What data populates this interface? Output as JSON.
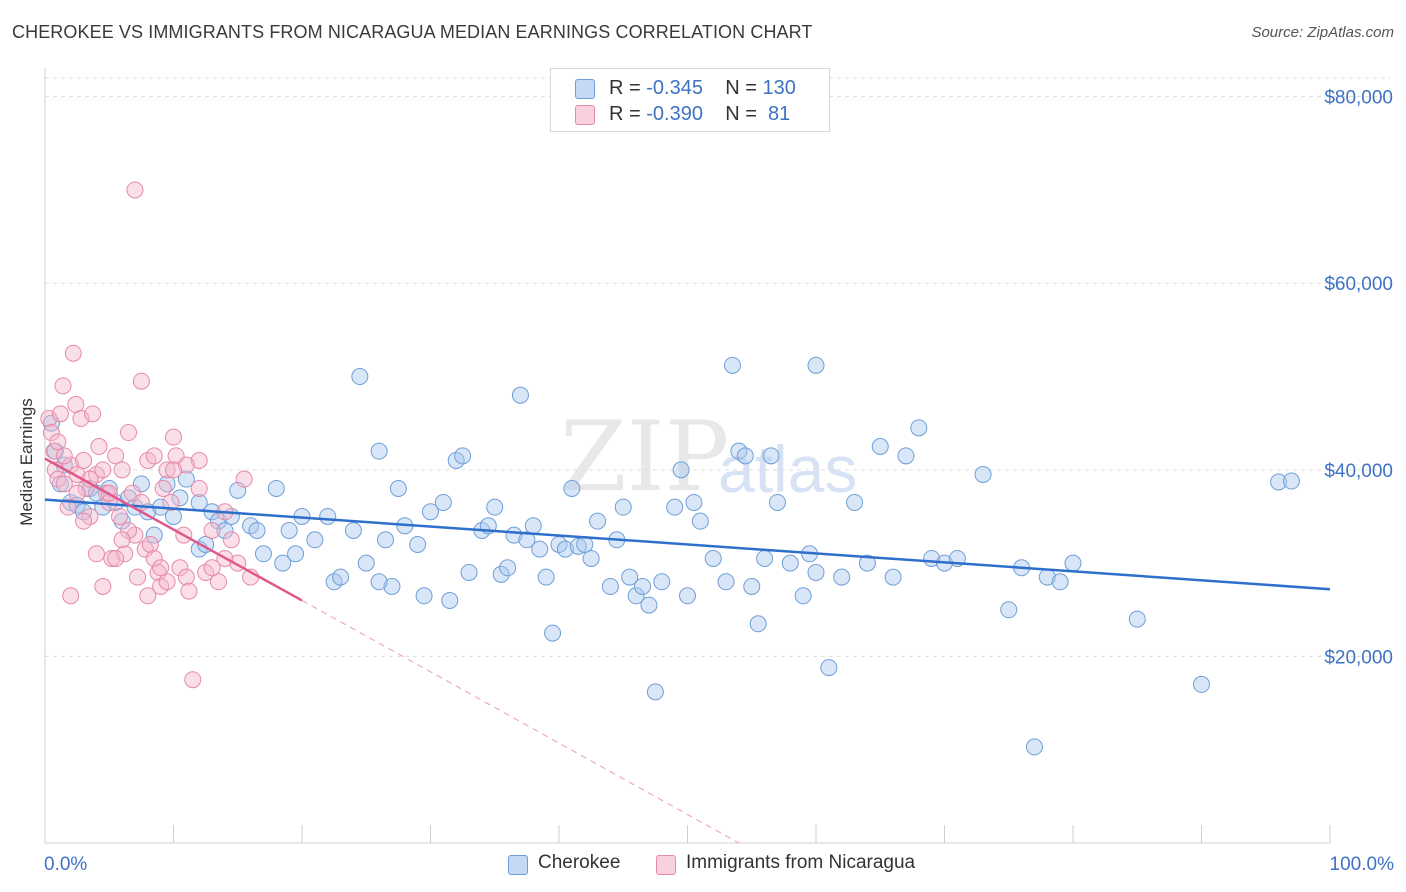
{
  "title": "CHEROKEE VS IMMIGRANTS FROM NICARAGUA MEDIAN EARNINGS CORRELATION CHART",
  "source": "Source: ZipAtlas.com",
  "watermark": "ZIPatlas",
  "colors": {
    "cherokee_fill": "#a9c7ee",
    "cherokee_stroke": "#6f9fd8",
    "cherokee_line": "#2f6fcc",
    "nicaragua_fill": "#f5b8cb",
    "nicaragua_stroke": "#e58aa8",
    "nicaragua_line": "#e0578a",
    "axis_label": "#3d72c4",
    "grid": "#dddddd"
  },
  "legend": [
    {
      "r_label": "R = ",
      "r_value": "-0.345",
      "n_label": "N = ",
      "n_value": "130"
    },
    {
      "r_label": "R = ",
      "r_value": "-0.390",
      "n_label": "N = ",
      "n_value": " 81"
    }
  ],
  "chart_data": {
    "type": "scatter",
    "title": "CHEROKEE VS IMMIGRANTS FROM NICARAGUA MEDIAN EARNINGS CORRELATION CHART",
    "ylabel": "Median Earnings",
    "xlabel": "",
    "x_tick_labels": [
      "0.0%",
      "100.0%"
    ],
    "y_tick_labels": [
      "$20,000",
      "$40,000",
      "$60,000",
      "$80,000"
    ],
    "y_ticks": [
      20000,
      40000,
      60000,
      80000
    ],
    "xlim": [
      0,
      100
    ],
    "ylim": [
      0,
      82000
    ],
    "grid": true,
    "legend_position": "top-center",
    "series": [
      {
        "name": "Cherokee",
        "trend": {
          "x": [
            0,
            100
          ],
          "y": [
            36800,
            27200
          ],
          "dashed_to": null
        },
        "points": [
          [
            0.5,
            45000
          ],
          [
            0.8,
            42000
          ],
          [
            1.2,
            38500
          ],
          [
            1.5,
            40500
          ],
          [
            2.0,
            36500
          ],
          [
            2.5,
            36200
          ],
          [
            3.0,
            35500
          ],
          [
            3.5,
            38000
          ],
          [
            4.0,
            37500
          ],
          [
            4.5,
            36000
          ],
          [
            5.0,
            38000
          ],
          [
            5.5,
            36500
          ],
          [
            6.0,
            34500
          ],
          [
            6.5,
            37000
          ],
          [
            7.0,
            36000
          ],
          [
            7.5,
            38500
          ],
          [
            8.0,
            35500
          ],
          [
            8.5,
            33000
          ],
          [
            9.0,
            36000
          ],
          [
            9.5,
            38500
          ],
          [
            10.0,
            35000
          ],
          [
            10.5,
            37000
          ],
          [
            11.0,
            39000
          ],
          [
            12.0,
            31500
          ],
          [
            12.5,
            32000
          ],
          [
            13.0,
            35500
          ],
          [
            13.5,
            34500
          ],
          [
            14.0,
            33500
          ],
          [
            14.5,
            35000
          ],
          [
            15.0,
            37800
          ],
          [
            16.0,
            34000
          ],
          [
            16.5,
            33500
          ],
          [
            17.0,
            31000
          ],
          [
            18.0,
            38000
          ],
          [
            18.5,
            30000
          ],
          [
            19.0,
            33500
          ],
          [
            19.5,
            31000
          ],
          [
            20.0,
            35000
          ],
          [
            21.0,
            32500
          ],
          [
            22.0,
            35000
          ],
          [
            22.5,
            28000
          ],
          [
            23.0,
            28500
          ],
          [
            24.0,
            33500
          ],
          [
            24.5,
            50000
          ],
          [
            25.0,
            30000
          ],
          [
            26.0,
            42000
          ],
          [
            26.5,
            32500
          ],
          [
            27.0,
            27500
          ],
          [
            27.5,
            38000
          ],
          [
            28.0,
            34000
          ],
          [
            29.0,
            32000
          ],
          [
            29.5,
            26500
          ],
          [
            30.0,
            35500
          ],
          [
            31.0,
            36500
          ],
          [
            31.5,
            26000
          ],
          [
            32.0,
            41000
          ],
          [
            32.5,
            41500
          ],
          [
            33.0,
            29000
          ],
          [
            34.0,
            33500
          ],
          [
            34.5,
            34000
          ],
          [
            35.0,
            36000
          ],
          [
            35.5,
            28800
          ],
          [
            36.0,
            29500
          ],
          [
            36.5,
            33000
          ],
          [
            37.0,
            48000
          ],
          [
            37.5,
            32500
          ],
          [
            38.0,
            34000
          ],
          [
            38.5,
            31500
          ],
          [
            39.0,
            28500
          ],
          [
            39.5,
            22500
          ],
          [
            40.0,
            32000
          ],
          [
            40.5,
            31500
          ],
          [
            41.0,
            38000
          ],
          [
            41.5,
            31800
          ],
          [
            42.0,
            32000
          ],
          [
            42.5,
            30500
          ],
          [
            43.0,
            34500
          ],
          [
            44.0,
            27500
          ],
          [
            44.5,
            32500
          ],
          [
            45.0,
            36000
          ],
          [
            45.5,
            28500
          ],
          [
            46.0,
            26500
          ],
          [
            46.5,
            27500
          ],
          [
            47.0,
            25500
          ],
          [
            47.5,
            16200
          ],
          [
            48.0,
            28000
          ],
          [
            49.0,
            36000
          ],
          [
            49.5,
            40000
          ],
          [
            50.0,
            26500
          ],
          [
            50.5,
            36500
          ],
          [
            51.0,
            34500
          ],
          [
            52.0,
            30500
          ],
          [
            53.0,
            28000
          ],
          [
            53.5,
            51200
          ],
          [
            54.0,
            42000
          ],
          [
            54.5,
            41500
          ],
          [
            55.0,
            27500
          ],
          [
            55.5,
            23500
          ],
          [
            56.0,
            30500
          ],
          [
            56.5,
            41500
          ],
          [
            57.0,
            36500
          ],
          [
            58.0,
            30000
          ],
          [
            59.0,
            26500
          ],
          [
            59.5,
            31000
          ],
          [
            60.0,
            29000
          ],
          [
            61.0,
            18800
          ],
          [
            62.0,
            28500
          ],
          [
            63.0,
            36500
          ],
          [
            64.0,
            30000
          ],
          [
            65.0,
            42500
          ],
          [
            66.0,
            28500
          ],
          [
            67.0,
            41500
          ],
          [
            68.0,
            44500
          ],
          [
            69.0,
            30500
          ],
          [
            70.0,
            30000
          ],
          [
            71.0,
            30500
          ],
          [
            73.0,
            39500
          ],
          [
            75.0,
            25000
          ],
          [
            76.0,
            29500
          ],
          [
            77.0,
            10300
          ],
          [
            78.0,
            28500
          ],
          [
            79.0,
            28000
          ],
          [
            80.0,
            30000
          ],
          [
            85.0,
            24000
          ],
          [
            90.0,
            17000
          ],
          [
            96.0,
            38700
          ],
          [
            97.0,
            38800
          ],
          [
            12.0,
            36500
          ],
          [
            26.0,
            28000
          ],
          [
            60.0,
            51200
          ]
        ]
      },
      {
        "name": "Immigrants from Nicaragua",
        "trend": {
          "x": [
            0,
            20
          ],
          "y": [
            41200,
            26000
          ],
          "dashed_to": {
            "x": 54,
            "y": 0
          }
        },
        "points": [
          [
            0.3,
            45500
          ],
          [
            0.5,
            44000
          ],
          [
            0.7,
            42000
          ],
          [
            0.8,
            40000
          ],
          [
            1.0,
            39000
          ],
          [
            1.2,
            46000
          ],
          [
            1.4,
            49000
          ],
          [
            1.5,
            38500
          ],
          [
            1.8,
            36000
          ],
          [
            2.0,
            40500
          ],
          [
            2.2,
            52500
          ],
          [
            2.4,
            47000
          ],
          [
            2.5,
            39500
          ],
          [
            2.8,
            45500
          ],
          [
            3.0,
            41000
          ],
          [
            3.2,
            38000
          ],
          [
            3.5,
            35000
          ],
          [
            3.7,
            46000
          ],
          [
            4.0,
            39500
          ],
          [
            4.2,
            42500
          ],
          [
            4.5,
            40000
          ],
          [
            4.8,
            37500
          ],
          [
            5.0,
            36500
          ],
          [
            5.2,
            30500
          ],
          [
            5.5,
            41500
          ],
          [
            5.8,
            35000
          ],
          [
            6.0,
            40000
          ],
          [
            6.2,
            31000
          ],
          [
            6.5,
            44000
          ],
          [
            6.8,
            37500
          ],
          [
            7.0,
            33000
          ],
          [
            7.2,
            28500
          ],
          [
            7.5,
            49500
          ],
          [
            7.8,
            31500
          ],
          [
            8.0,
            41000
          ],
          [
            8.2,
            32000
          ],
          [
            8.5,
            30500
          ],
          [
            8.8,
            29000
          ],
          [
            9.0,
            27500
          ],
          [
            9.2,
            38000
          ],
          [
            9.5,
            40000
          ],
          [
            9.8,
            36500
          ],
          [
            10.0,
            43500
          ],
          [
            10.2,
            41500
          ],
          [
            10.5,
            29500
          ],
          [
            10.8,
            33000
          ],
          [
            11.0,
            28500
          ],
          [
            11.2,
            27000
          ],
          [
            11.5,
            17500
          ],
          [
            12.0,
            41000
          ],
          [
            12.5,
            29000
          ],
          [
            13.0,
            33500
          ],
          [
            13.5,
            28000
          ],
          [
            14.0,
            35500
          ],
          [
            14.5,
            32500
          ],
          [
            15.0,
            30000
          ],
          [
            15.5,
            39000
          ],
          [
            16.0,
            28500
          ],
          [
            5.0,
            37500
          ],
          [
            6.5,
            33500
          ],
          [
            2.0,
            26500
          ],
          [
            9.5,
            28000
          ],
          [
            7.0,
            70000
          ],
          [
            4.0,
            31000
          ],
          [
            3.5,
            39000
          ],
          [
            1.0,
            43000
          ],
          [
            8.0,
            26500
          ],
          [
            11.0,
            40500
          ],
          [
            9.0,
            29500
          ],
          [
            6.0,
            32500
          ],
          [
            5.5,
            30500
          ],
          [
            4.5,
            27500
          ],
          [
            3.0,
            34500
          ],
          [
            2.5,
            37500
          ],
          [
            1.5,
            41500
          ],
          [
            7.5,
            36500
          ],
          [
            8.5,
            41500
          ],
          [
            10.0,
            40000
          ],
          [
            12.0,
            38000
          ],
          [
            13.0,
            29500
          ],
          [
            14.0,
            30500
          ]
        ]
      }
    ]
  }
}
